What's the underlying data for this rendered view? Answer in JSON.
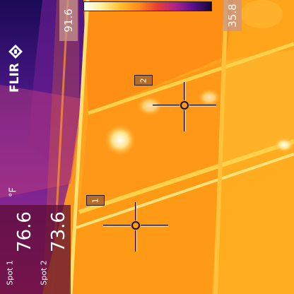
{
  "brand": {
    "logo_text": "FLIR",
    "icon": "flir-logo-icon"
  },
  "scale": {
    "max_value": "91.6",
    "min_value": "35.8"
  },
  "unit": "°F",
  "spots": [
    {
      "label": "Spot 1",
      "value": "76.6"
    },
    {
      "label": "Spot 2",
      "value": "73.6"
    }
  ],
  "markers": [
    {
      "id": "1"
    },
    {
      "id": "2"
    }
  ],
  "palette": {
    "hot": "#fff4a0",
    "warm": "#ff9a1a",
    "cool": "#c82e6e",
    "cold": "#3a1478"
  }
}
